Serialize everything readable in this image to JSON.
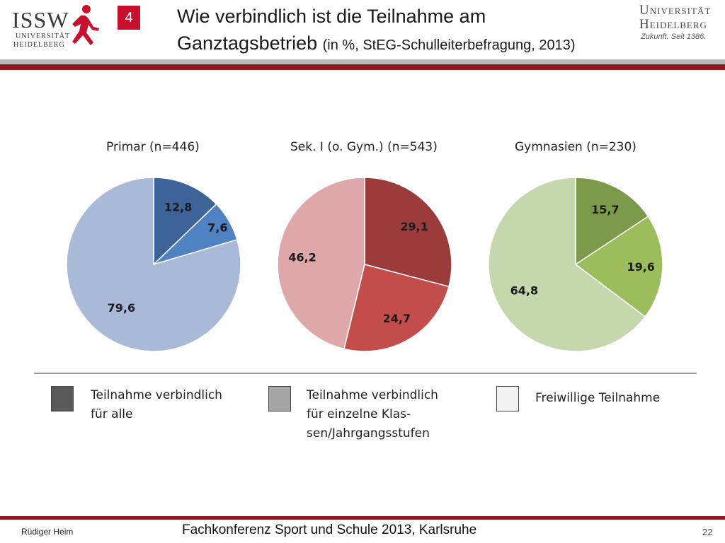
{
  "header": {
    "slide_badge": "4",
    "title_line1": "Wie verbindlich ist die Teilnahme am",
    "title_line2": "Ganztagsbetrieb",
    "title_subtitle": "(in %, StEG-Schulleiterbefragung, 2013)",
    "logo_left": {
      "letters": "ISSW",
      "line1": "UNIVERSITÄT",
      "line2": "HEIDELBERG"
    },
    "logo_right": {
      "line1": "Universität",
      "line2": "Heidelberg",
      "motto": "Zukunft. Seit 1386."
    }
  },
  "chart_data": [
    {
      "type": "pie",
      "title": "Primar (n=446)",
      "categories": [
        "Teilnahme verbindlich für alle",
        "Teilnahme verbindlich für einzelne Klassen/Jahrgangsstufen",
        "Freiwillige Teilnahme"
      ],
      "values": [
        12.8,
        7.6,
        79.6
      ],
      "labels": [
        "12,8",
        "7,6",
        "79,6"
      ],
      "colors": [
        "#3d6499",
        "#4f82c3",
        "#a9bad8"
      ]
    },
    {
      "type": "pie",
      "title": "Sek. I (o. Gym.) (n=543)",
      "categories": [
        "Teilnahme verbindlich für alle",
        "Teilnahme verbindlich für einzelne Klassen/Jahrgangsstufen",
        "Freiwillige Teilnahme"
      ],
      "values": [
        29.1,
        24.7,
        46.2
      ],
      "labels": [
        "29,1",
        "24,7",
        "46,2"
      ],
      "colors": [
        "#9b3b3b",
        "#c24d4b",
        "#dda8a7"
      ]
    },
    {
      "type": "pie",
      "title": "Gymnasien (n=230)",
      "categories": [
        "Teilnahme verbindlich für alle",
        "Teilnahme verbindlich für einzelne Klassen/Jahrgangsstufen",
        "Freiwillige Teilnahme"
      ],
      "values": [
        15.7,
        19.6,
        64.8
      ],
      "labels": [
        "15,7",
        "19,6",
        "64,8"
      ],
      "colors": [
        "#7b9a4a",
        "#9bbd5c",
        "#c6d6ad"
      ]
    }
  ],
  "legend": [
    {
      "line1": "Teilnahme verbindlich",
      "line2": "für alle",
      "line3": "",
      "color": "#5a5a5a"
    },
    {
      "line1": "Teilnahme verbindlich",
      "line2": "für einzelne Klas-",
      "line3": "sen/Jahrgangsstufen",
      "color": "#a5a5a5"
    },
    {
      "line1": "Freiwillige Teilnahme",
      "line2": "",
      "line3": "",
      "color": "#f2f2f2"
    }
  ],
  "footer": {
    "author": "Rüdiger Heim",
    "event": "Fachkonferenz Sport und Schule 2013, Karlsruhe",
    "page_number": "22"
  }
}
